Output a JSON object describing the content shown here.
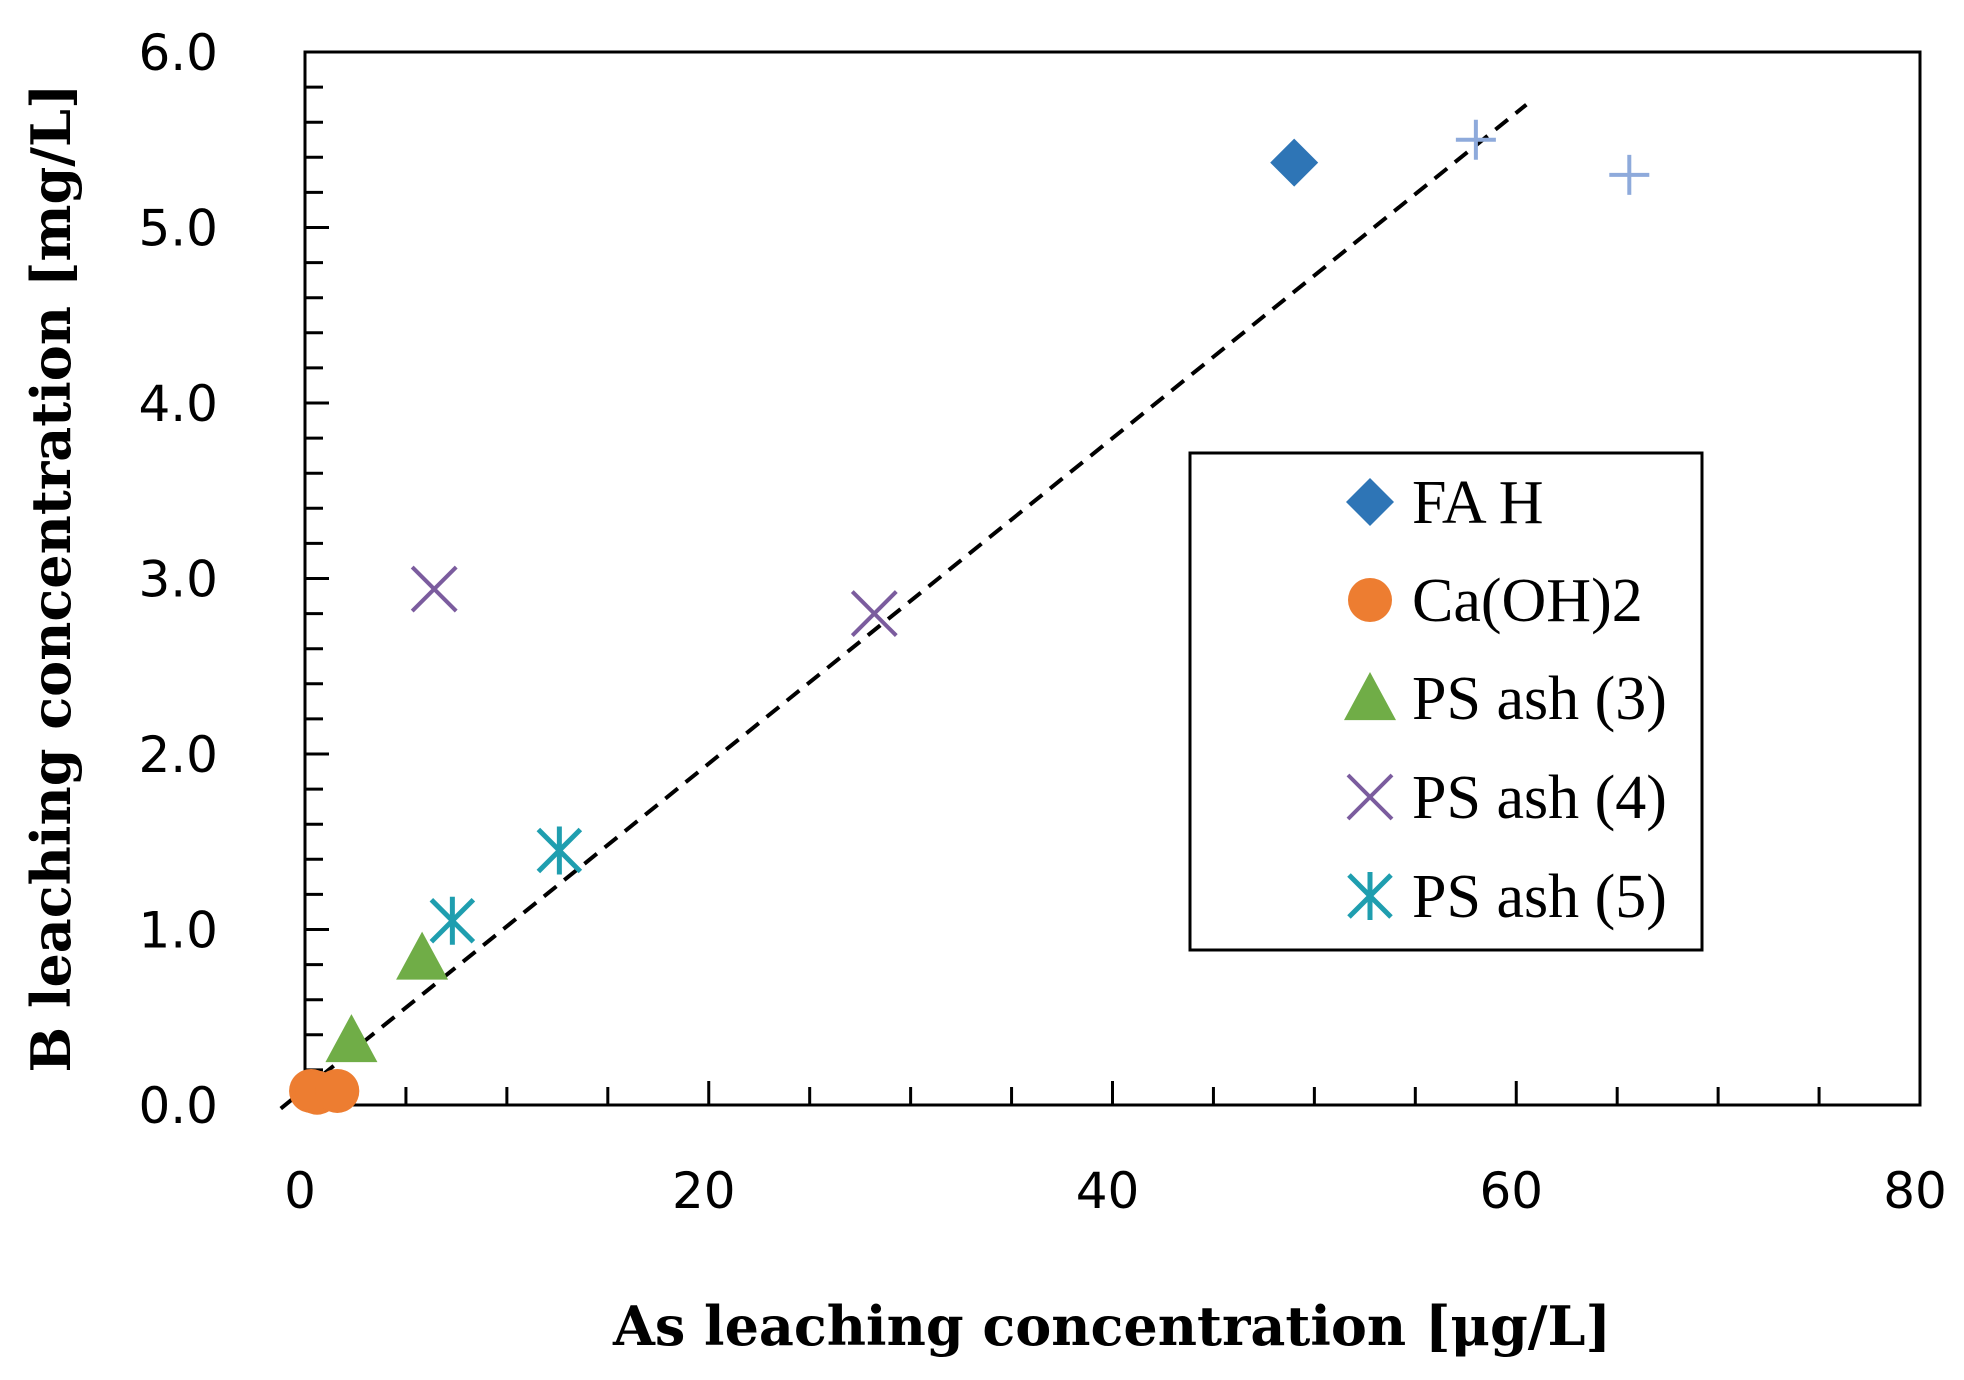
{
  "chart_data": {
    "type": "scatter",
    "xlabel": "As leaching concentration [μg/L]",
    "ylabel": "B leaching concentration [mg/L]",
    "xlim": [
      0,
      80
    ],
    "ylim": [
      0,
      6
    ],
    "x_ticks": [
      0,
      20,
      40,
      60,
      80
    ],
    "y_ticks": [
      0,
      1,
      2,
      3,
      4,
      5,
      6
    ],
    "x_tick_labels": [
      "0",
      "20",
      "40",
      "60",
      "80"
    ],
    "y_tick_labels": [
      "0.0",
      "1.0",
      "2.0",
      "3.0",
      "4.0",
      "5.0",
      "6.0"
    ],
    "grid": false,
    "legend_position": "right",
    "series": [
      {
        "name": "FA H",
        "marker": "diamond",
        "color": "#2E75B6",
        "x": [
          49,
          58,
          65.6
        ],
        "y": [
          5.37,
          5.5,
          5.3
        ]
      },
      {
        "name": "Ca(OH)2",
        "marker": "circle",
        "color": "#ED7D31",
        "x": [
          0.3,
          0.6,
          1.6
        ],
        "y": [
          0.08,
          0.07,
          0.08
        ]
      },
      {
        "name": "PS ash (3)",
        "marker": "triangle",
        "color": "#70AD47",
        "x": [
          2.3,
          5.8
        ],
        "y": [
          0.37,
          0.84
        ]
      },
      {
        "name": "PS ash (4)",
        "marker": "x",
        "color": "#7B5C9E",
        "x": [
          6.4,
          28.2
        ],
        "y": [
          2.94,
          2.8
        ]
      },
      {
        "name": "PS ash (5)",
        "marker": "star",
        "color": "#1F9EAF",
        "x": [
          7.3,
          12.6
        ],
        "y": [
          1.05,
          1.45
        ]
      }
    ],
    "extra_points": [
      {
        "marker": "plus",
        "color": "#8EAADB",
        "x": 58,
        "y": 5.5
      },
      {
        "marker": "plus",
        "color": "#8EAADB",
        "x": 65.6,
        "y": 5.3
      }
    ],
    "trendline": {
      "style": "dashed",
      "color": "#000000",
      "x": [
        -1.2,
        60.5
      ],
      "y": [
        -0.02,
        5.7
      ]
    }
  }
}
